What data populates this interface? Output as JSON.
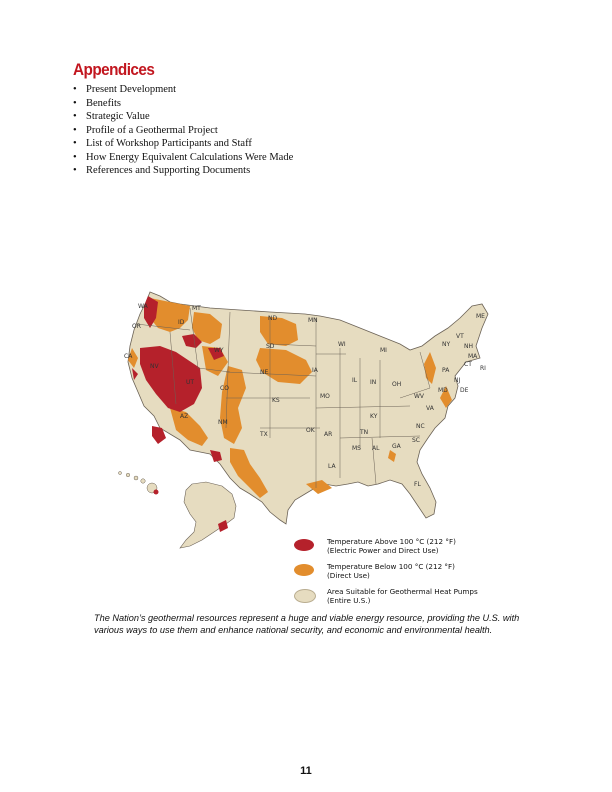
{
  "heading": "Appendices",
  "bullets": [
    "Present Development",
    "Benefits",
    "Strategic Value",
    "Profile of a Geothermal Project",
    "List of Workshop Participants and Staff",
    "How Energy Equivalent Calculations Were Made",
    "References and Supporting Documents"
  ],
  "map": {
    "colors": {
      "high_temp": "#b5212b",
      "low_temp": "#e28d2d",
      "heat_pump": "#e6dcc0",
      "border": "#6b6256"
    },
    "state_labels": [
      "WA",
      "OR",
      "CA",
      "NV",
      "ID",
      "MT",
      "WY",
      "UT",
      "AZ",
      "CO",
      "NM",
      "ND",
      "SD",
      "NE",
      "KS",
      "OK",
      "TX",
      "MN",
      "IA",
      "MO",
      "AR",
      "LA",
      "WI",
      "IL",
      "MS",
      "MI",
      "IN",
      "KY",
      "TN",
      "AL",
      "OH",
      "GA",
      "FL",
      "SC",
      "NC",
      "VA",
      "WV",
      "PA",
      "NY",
      "VT",
      "NH",
      "ME",
      "MA",
      "RI",
      "CT",
      "NJ",
      "DE",
      "MD"
    ]
  },
  "legend": [
    {
      "line1": "Temperature Above 100 °C (212 °F)",
      "line2": "(Electric Power and Direct Use)"
    },
    {
      "line1": "Temperature Below 100 °C (212 °F)",
      "line2": "(Direct Use)"
    },
    {
      "line1": "Area Suitable for Geothermal Heat Pumps",
      "line2": "(Entire U.S.)"
    }
  ],
  "caption": "The Nation’s geothermal resources represent a huge and viable energy resource, providing the U.S. with various ways to use them and enhance national security, and economic and environmental health.",
  "page_number": "11"
}
